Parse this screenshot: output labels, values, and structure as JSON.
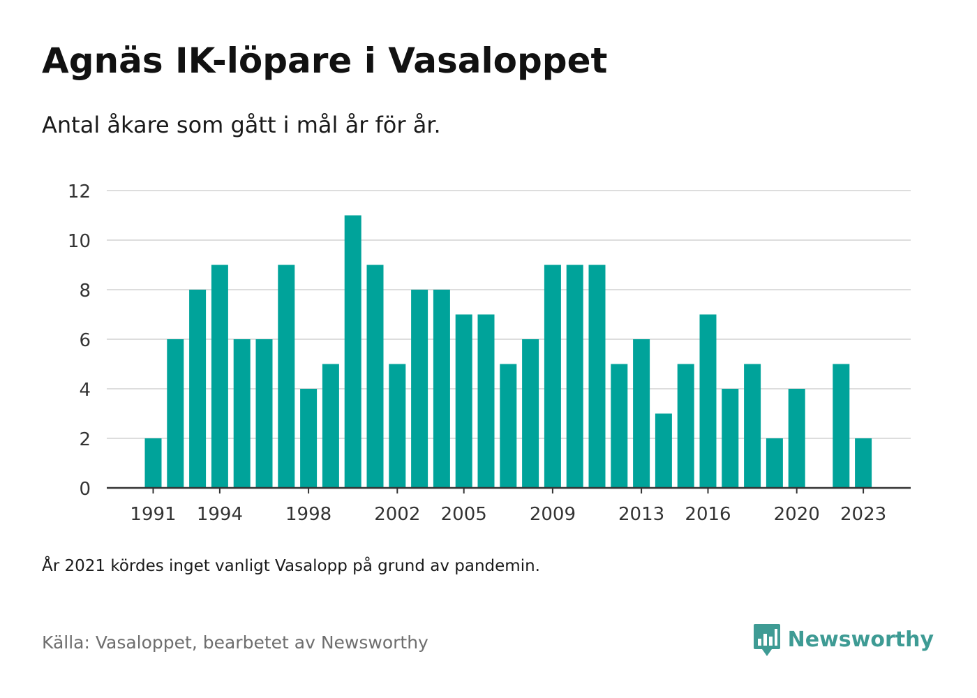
{
  "title": "Agnäs IK-löpare i Vasaloppet",
  "subtitle": "Antal åkare som gått i mål år för år.",
  "note": "År 2021 kördes inget vanligt Vasalopp på grund av pandemin.",
  "source": "Källa: Vasaloppet, bearbetet av Newsworthy",
  "brand": {
    "name": "Newsworthy",
    "icon": "bar-chart-speech-bubble-icon",
    "color": "#3e9b94"
  },
  "colors": {
    "bar": "#00a39a",
    "grid": "#dddddd",
    "axis": "#333333"
  },
  "chart_data": {
    "type": "bar",
    "title": "Agnäs IK-löpare i Vasaloppet",
    "subtitle": "Antal åkare som gått i mål år för år.",
    "xlabel": "",
    "ylabel": "",
    "ylim": [
      0,
      12
    ],
    "yticks": [
      0,
      2,
      4,
      6,
      8,
      10,
      12
    ],
    "xticks": [
      1991,
      1994,
      1998,
      2002,
      2005,
      2009,
      2013,
      2016,
      2020,
      2023
    ],
    "grid": true,
    "legend": "none",
    "categories": [
      1991,
      1992,
      1993,
      1994,
      1995,
      1996,
      1997,
      1998,
      1999,
      2000,
      2001,
      2002,
      2003,
      2004,
      2005,
      2006,
      2007,
      2008,
      2009,
      2010,
      2011,
      2012,
      2013,
      2014,
      2015,
      2016,
      2017,
      2018,
      2019,
      2020,
      2021,
      2022,
      2023
    ],
    "values": [
      2,
      6,
      8,
      9,
      6,
      6,
      9,
      4,
      5,
      11,
      9,
      5,
      8,
      8,
      7,
      7,
      5,
      6,
      9,
      9,
      9,
      5,
      6,
      3,
      5,
      7,
      4,
      5,
      2,
      4,
      null,
      5,
      2
    ]
  }
}
